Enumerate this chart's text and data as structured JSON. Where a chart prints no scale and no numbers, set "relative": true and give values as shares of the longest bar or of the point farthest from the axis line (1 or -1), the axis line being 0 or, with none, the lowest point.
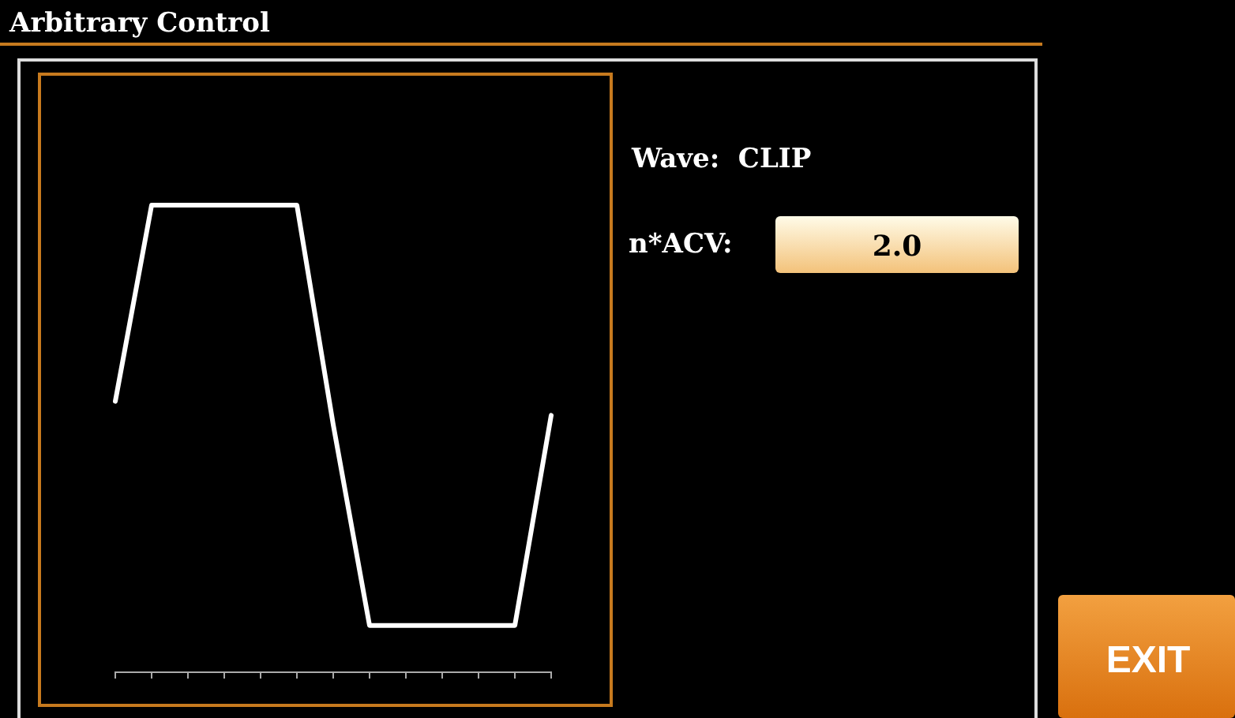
{
  "chart_data": {
    "type": "line",
    "title": "Arbitrary Control",
    "relative": true,
    "categories": [
      null,
      null,
      null,
      null,
      null,
      null,
      null,
      null,
      null,
      null,
      null,
      null,
      null
    ],
    "series": [
      {
        "color": "#ffffff",
        "values": [
          0.58,
          1,
          1,
          1,
          1,
          1,
          0.53,
          0.1,
          0.1,
          0.1,
          0.1,
          0.1,
          0.55
        ]
      }
    ],
    "annotations": [
      "Wave:  CLIP",
      "n*ACV:",
      "2.0",
      "EXIT"
    ]
  }
}
